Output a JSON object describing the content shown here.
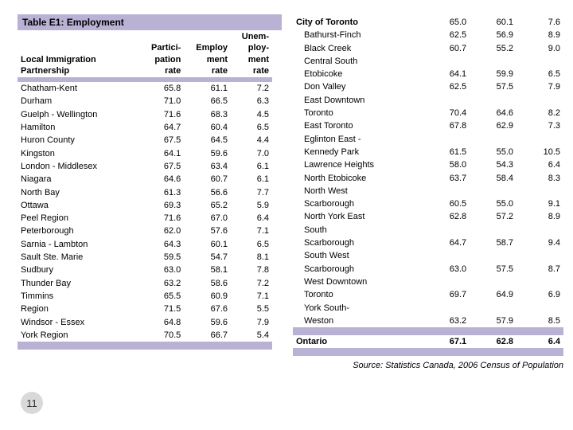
{
  "title": "Table E1: Employment",
  "columns": [
    "Local Immigration Partnership",
    "Participation rate",
    "Employment rate",
    "Unemployment rate"
  ],
  "col_hdr_lines": {
    "c0": [
      "Local Immigration",
      "Partnership"
    ],
    "c1": [
      "Partici-",
      "pation",
      "rate"
    ],
    "c2": [
      "Employ",
      "ment",
      "rate"
    ],
    "c3": [
      "Unem-",
      "ploy-",
      "ment",
      "rate"
    ]
  },
  "left_rows": [
    {
      "label": "Chatham-Kent",
      "v": [
        65.8,
        61.1,
        7.2
      ]
    },
    {
      "label": "Durham",
      "v": [
        71.0,
        66.5,
        6.3
      ]
    },
    {
      "label": "Guelph - Wellington",
      "v": [
        71.6,
        68.3,
        4.5
      ]
    },
    {
      "label": "Hamilton",
      "v": [
        64.7,
        60.4,
        6.5
      ]
    },
    {
      "label": "Huron County",
      "v": [
        67.5,
        64.5,
        4.4
      ]
    },
    {
      "label": "Kingston",
      "v": [
        64.1,
        59.6,
        7.0
      ]
    },
    {
      "label": "London - Middlesex",
      "v": [
        67.5,
        63.4,
        6.1
      ]
    },
    {
      "label": "Niagara",
      "v": [
        64.6,
        60.7,
        6.1
      ]
    },
    {
      "label": "North Bay",
      "v": [
        61.3,
        56.6,
        7.7
      ]
    },
    {
      "label": "Ottawa",
      "v": [
        69.3,
        65.2,
        5.9
      ]
    },
    {
      "label": "Peel Region",
      "v": [
        71.6,
        67.0,
        6.4
      ]
    },
    {
      "label": "Peterborough",
      "v": [
        62.0,
        57.6,
        7.1
      ]
    },
    {
      "label": "Sarnia - Lambton",
      "v": [
        64.3,
        60.1,
        6.5
      ]
    },
    {
      "label": "Sault Ste. Marie",
      "v": [
        59.5,
        54.7,
        8.1
      ]
    },
    {
      "label": "Sudbury",
      "v": [
        63.0,
        58.1,
        7.8
      ]
    },
    {
      "label": "Thunder Bay",
      "v": [
        63.2,
        58.6,
        7.2
      ]
    },
    {
      "label": "Timmins",
      "v": [
        65.5,
        60.9,
        7.1
      ]
    },
    {
      "label": "Region",
      "v": [
        71.5,
        67.6,
        5.5
      ]
    },
    {
      "label": "Windsor - Essex",
      "v": [
        64.8,
        59.6,
        7.9
      ]
    },
    {
      "label": "York  Region",
      "v": [
        70.5,
        66.7,
        5.4
      ]
    }
  ],
  "right_rows": [
    {
      "label": "City of  Toronto",
      "v": [
        65.0,
        60.1,
        7.6
      ],
      "cls": "city"
    },
    {
      "label": "Bathurst-Finch",
      "v": [
        62.5,
        56.9,
        8.9
      ],
      "indent": 1
    },
    {
      "label": "Black Creek",
      "v": [
        60.7,
        55.2,
        9.0
      ],
      "indent": 1
    },
    {
      "label": "Central South Etobicoke",
      "v": [
        64.1,
        59.9,
        6.5
      ],
      "indent": 1
    },
    {
      "label": "Don Valley",
      "v": [
        62.5,
        57.5,
        7.9
      ],
      "indent": 1
    },
    {
      "label": "East Downtown Toronto",
      "v": [
        70.4,
        64.6,
        8.2
      ],
      "indent": 1
    },
    {
      "label": "East Toronto",
      "v": [
        67.8,
        62.9,
        7.3
      ],
      "indent": 1
    },
    {
      "label": "Eglinton East - Kennedy Park",
      "v": [
        61.5,
        55.0,
        10.5
      ],
      "indent": 1
    },
    {
      "label": "Lawrence Heights",
      "v": [
        58.0,
        54.3,
        6.4
      ],
      "indent": 1
    },
    {
      "label": "North Etobicoke",
      "v": [
        63.7,
        58.4,
        8.3
      ],
      "indent": 1
    },
    {
      "label": "North West Scarborough",
      "v": [
        60.5,
        55.0,
        9.1
      ],
      "indent": 1
    },
    {
      "label": "North York East",
      "v": [
        62.8,
        57.2,
        8.9
      ],
      "indent": 1
    },
    {
      "label": "South Scarborough",
      "v": [
        64.7,
        58.7,
        9.4
      ],
      "indent": 1
    },
    {
      "label": "South West Scarborough",
      "v": [
        63.0,
        57.5,
        8.7
      ],
      "indent": 1
    },
    {
      "label": "West Downtown Toronto",
      "v": [
        69.7,
        64.9,
        6.9
      ],
      "indent": 1
    },
    {
      "label": "York South-Weston",
      "v": [
        63.2,
        57.9,
        8.5
      ],
      "indent": 1
    }
  ],
  "ontario": {
    "label": "Ontario",
    "v": [
      67.1,
      62.8,
      6.4
    ]
  },
  "source": "Source: Statistics Canada, 2006 Census of Population",
  "page_number": "11",
  "colors": {
    "band": "#b9b2d5",
    "pagenum_bg": "#d9d9d9"
  }
}
